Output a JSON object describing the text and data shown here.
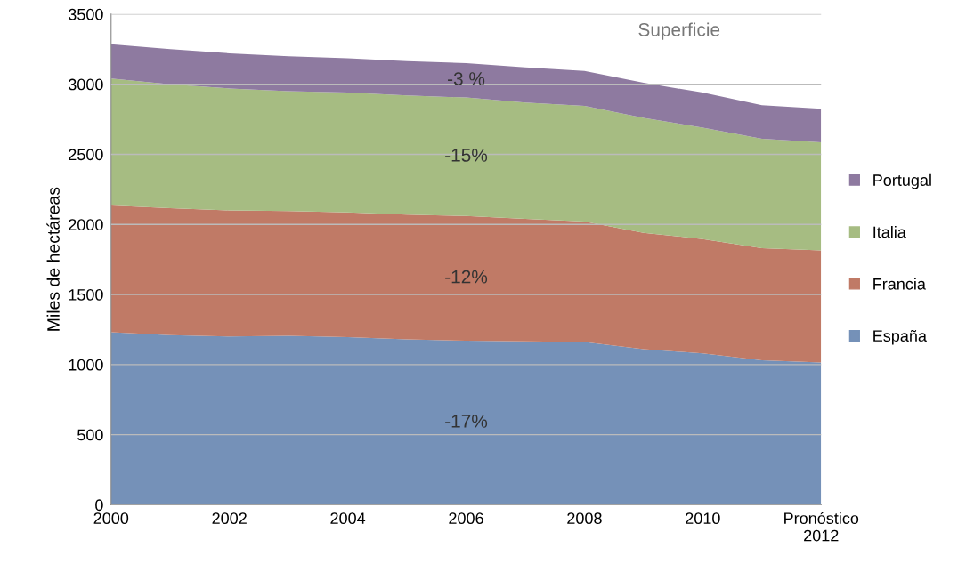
{
  "chart_data": {
    "type": "area",
    "stacked": true,
    "ylabel": "Miles de hectáreas",
    "x": [
      2000,
      2001,
      2002,
      2003,
      2004,
      2005,
      2006,
      2007,
      2008,
      2009,
      2010,
      2011,
      2012
    ],
    "series": [
      {
        "name": "España",
        "color": "#7591b8",
        "values": [
          1230,
          1210,
          1200,
          1205,
          1195,
          1180,
          1170,
          1165,
          1160,
          1110,
          1080,
          1030,
          1015
        ]
      },
      {
        "name": "Francia",
        "color": "#c07a66",
        "values": [
          905,
          905,
          900,
          890,
          890,
          890,
          890,
          875,
          860,
          830,
          815,
          800,
          800
        ]
      },
      {
        "name": "Italia",
        "color": "#a6bc82",
        "values": [
          905,
          885,
          870,
          855,
          855,
          850,
          845,
          830,
          825,
          820,
          795,
          780,
          770
        ]
      },
      {
        "name": "Portugal",
        "color": "#8e7aa0",
        "values": [
          245,
          250,
          250,
          250,
          245,
          245,
          245,
          250,
          250,
          250,
          250,
          240,
          240
        ]
      }
    ],
    "xlim": [
      2000,
      2012
    ],
    "xticks": [
      2000,
      2002,
      2004,
      2006,
      2008,
      2010,
      {
        "value": 2012,
        "label": "Pronóstico\n2012"
      }
    ],
    "ylim": [
      0,
      3500
    ],
    "yticks": [
      0,
      500,
      1000,
      1500,
      2000,
      2500,
      3000,
      3500
    ],
    "grid": "y",
    "legend": "right",
    "annotations": [
      "Superficie",
      "-3 %",
      "-15%",
      "-12%",
      "-17%"
    ]
  }
}
